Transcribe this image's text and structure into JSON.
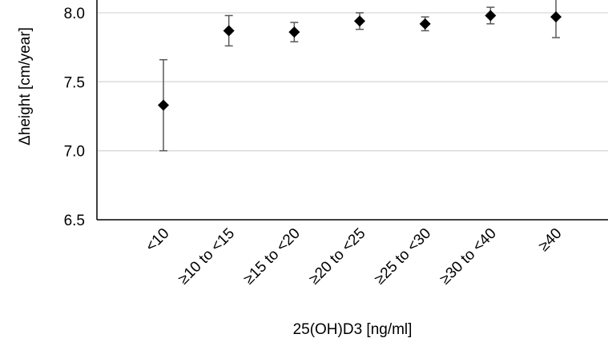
{
  "chart_data": {
    "type": "scatter",
    "categories": [
      "<10",
      "≥10 to <15",
      "≥15 to <20",
      "≥20 to <25",
      "≥25 to <30",
      "≥30 to <40",
      "≥40"
    ],
    "series": [
      {
        "values": [
          7.33,
          7.87,
          7.86,
          7.94,
          7.92,
          7.98,
          7.97
        ],
        "error_low": [
          7.0,
          7.76,
          7.79,
          7.88,
          7.87,
          7.92,
          7.82
        ],
        "error_high": [
          7.66,
          7.98,
          7.93,
          8.0,
          7.97,
          8.04,
          8.12
        ]
      }
    ],
    "xlabel": "25(OH)D3 [ng/ml]",
    "ylabel": "Δheight [cm/year]",
    "ylim": [
      6.5,
      8.0
    ],
    "yticks": [
      "6.5",
      "7.0",
      "7.5",
      "8.0"
    ],
    "grid": true,
    "marker": "diamond",
    "marker_color": "#000000",
    "error_bar_color": "#595959",
    "grid_color": "#d9d9d9"
  }
}
